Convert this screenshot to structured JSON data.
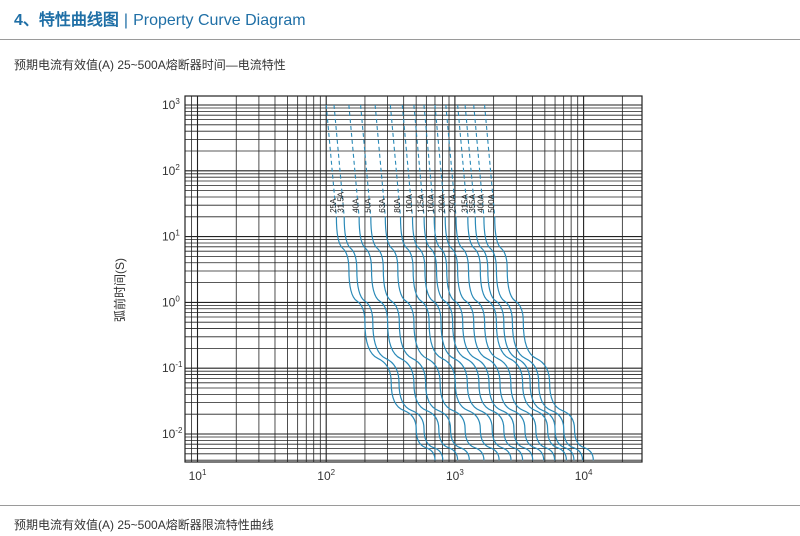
{
  "section": {
    "number": "4、特性曲线图",
    "title_en": "Property Curve Diagram"
  },
  "captions": {
    "top": "预期电流有效值(A)  25~500A熔断器时间—电流特性",
    "bottom": "预期电流有效值(A)  25~500A熔断器限流特性曲线"
  },
  "chart_data": {
    "type": "line",
    "title": "预期电流有效值(A)  25~500A熔断器时间—电流特性",
    "xlabel": "预期电流有效值(A)",
    "ylabel": "弧前时间(S)",
    "x_scale": "log",
    "y_scale": "log",
    "xlim": [
      10,
      25000
    ],
    "ylim": [
      0.004,
      1000
    ],
    "grid": true,
    "x_ticks": [
      {
        "value": 10,
        "base": "10",
        "exp": "1"
      },
      {
        "value": 100,
        "base": "10",
        "exp": "2"
      },
      {
        "value": 1000,
        "base": "10",
        "exp": "3"
      },
      {
        "value": 10000,
        "base": "10",
        "exp": "4"
      }
    ],
    "y_ticks": [
      {
        "value": 1000,
        "base": "10",
        "exp": "3"
      },
      {
        "value": 100,
        "base": "10",
        "exp": "2"
      },
      {
        "value": 10,
        "base": "10",
        "exp": "1"
      },
      {
        "value": 1,
        "base": "10",
        "exp": "0"
      },
      {
        "value": 0.1,
        "base": "10",
        "exp": "-1"
      },
      {
        "value": 0.01,
        "base": "10",
        "exp": "-2"
      }
    ],
    "colors": {
      "curve": "#2a8ab8",
      "grid": "#222222"
    },
    "series": [
      {
        "name": "25A",
        "x": [
          100,
          120,
          150,
          200,
          320,
          500,
          700
        ],
        "y": [
          1000,
          20,
          3.2,
          0.5,
          0.06,
          0.012,
          0.004
        ]
      },
      {
        "name": "31.5A",
        "x": [
          115,
          138,
          173,
          230,
          368,
          575,
          805
        ],
        "y": [
          1000,
          20,
          3.2,
          0.5,
          0.06,
          0.012,
          0.004
        ]
      },
      {
        "name": "40A",
        "x": [
          150,
          180,
          225,
          300,
          480,
          750,
          1050
        ],
        "y": [
          1000,
          20,
          3.2,
          0.5,
          0.06,
          0.012,
          0.004
        ]
      },
      {
        "name": "50A",
        "x": [
          185,
          222,
          278,
          370,
          592,
          925,
          1295
        ],
        "y": [
          1000,
          20,
          3.2,
          0.5,
          0.06,
          0.012,
          0.004
        ]
      },
      {
        "name": "63A",
        "x": [
          240,
          288,
          360,
          480,
          768,
          1200,
          1680
        ],
        "y": [
          1000,
          20,
          3.2,
          0.5,
          0.06,
          0.012,
          0.004
        ]
      },
      {
        "name": "80A",
        "x": [
          315,
          378,
          473,
          630,
          1008,
          1575,
          2205
        ],
        "y": [
          1000,
          20,
          3.2,
          0.5,
          0.06,
          0.012,
          0.004
        ]
      },
      {
        "name": "100A",
        "x": [
          390,
          468,
          585,
          780,
          1248,
          1950,
          2730
        ],
        "y": [
          1000,
          20,
          3.2,
          0.5,
          0.06,
          0.012,
          0.004
        ]
      },
      {
        "name": "125A",
        "x": [
          480,
          576,
          720,
          960,
          1536,
          2400,
          3360
        ],
        "y": [
          1000,
          20,
          3.2,
          0.5,
          0.06,
          0.012,
          0.004
        ]
      },
      {
        "name": "160A",
        "x": [
          575,
          690,
          863,
          1150,
          1840,
          2875,
          4025
        ],
        "y": [
          1000,
          20,
          3.2,
          0.5,
          0.06,
          0.012,
          0.004
        ]
      },
      {
        "name": "200A",
        "x": [
          700,
          840,
          1050,
          1400,
          2240,
          3500,
          4900
        ],
        "y": [
          1000,
          20,
          3.2,
          0.5,
          0.06,
          0.012,
          0.004
        ]
      },
      {
        "name": "250A",
        "x": [
          850,
          1020,
          1275,
          1700,
          2720,
          4250,
          5950
        ],
        "y": [
          1000,
          20,
          3.2,
          0.5,
          0.06,
          0.012,
          0.004
        ]
      },
      {
        "name": "315A",
        "x": [
          1050,
          1260,
          1575,
          2100,
          3360,
          5250,
          7350
        ],
        "y": [
          1000,
          20,
          3.2,
          0.5,
          0.06,
          0.012,
          0.004
        ]
      },
      {
        "name": "355A",
        "x": [
          1200,
          1440,
          1800,
          2400,
          3840,
          6000,
          8400
        ],
        "y": [
          1000,
          20,
          3.2,
          0.5,
          0.06,
          0.012,
          0.004
        ]
      },
      {
        "name": "400A",
        "x": [
          1400,
          1680,
          2100,
          2800,
          4480,
          7000,
          9800
        ],
        "y": [
          1000,
          20,
          3.2,
          0.5,
          0.06,
          0.012,
          0.004
        ]
      },
      {
        "name": "500A",
        "x": [
          1700,
          2040,
          2550,
          3400,
          5440,
          8500,
          11900
        ],
        "y": [
          1000,
          20,
          3.2,
          0.5,
          0.06,
          0.012,
          0.004
        ]
      }
    ]
  }
}
